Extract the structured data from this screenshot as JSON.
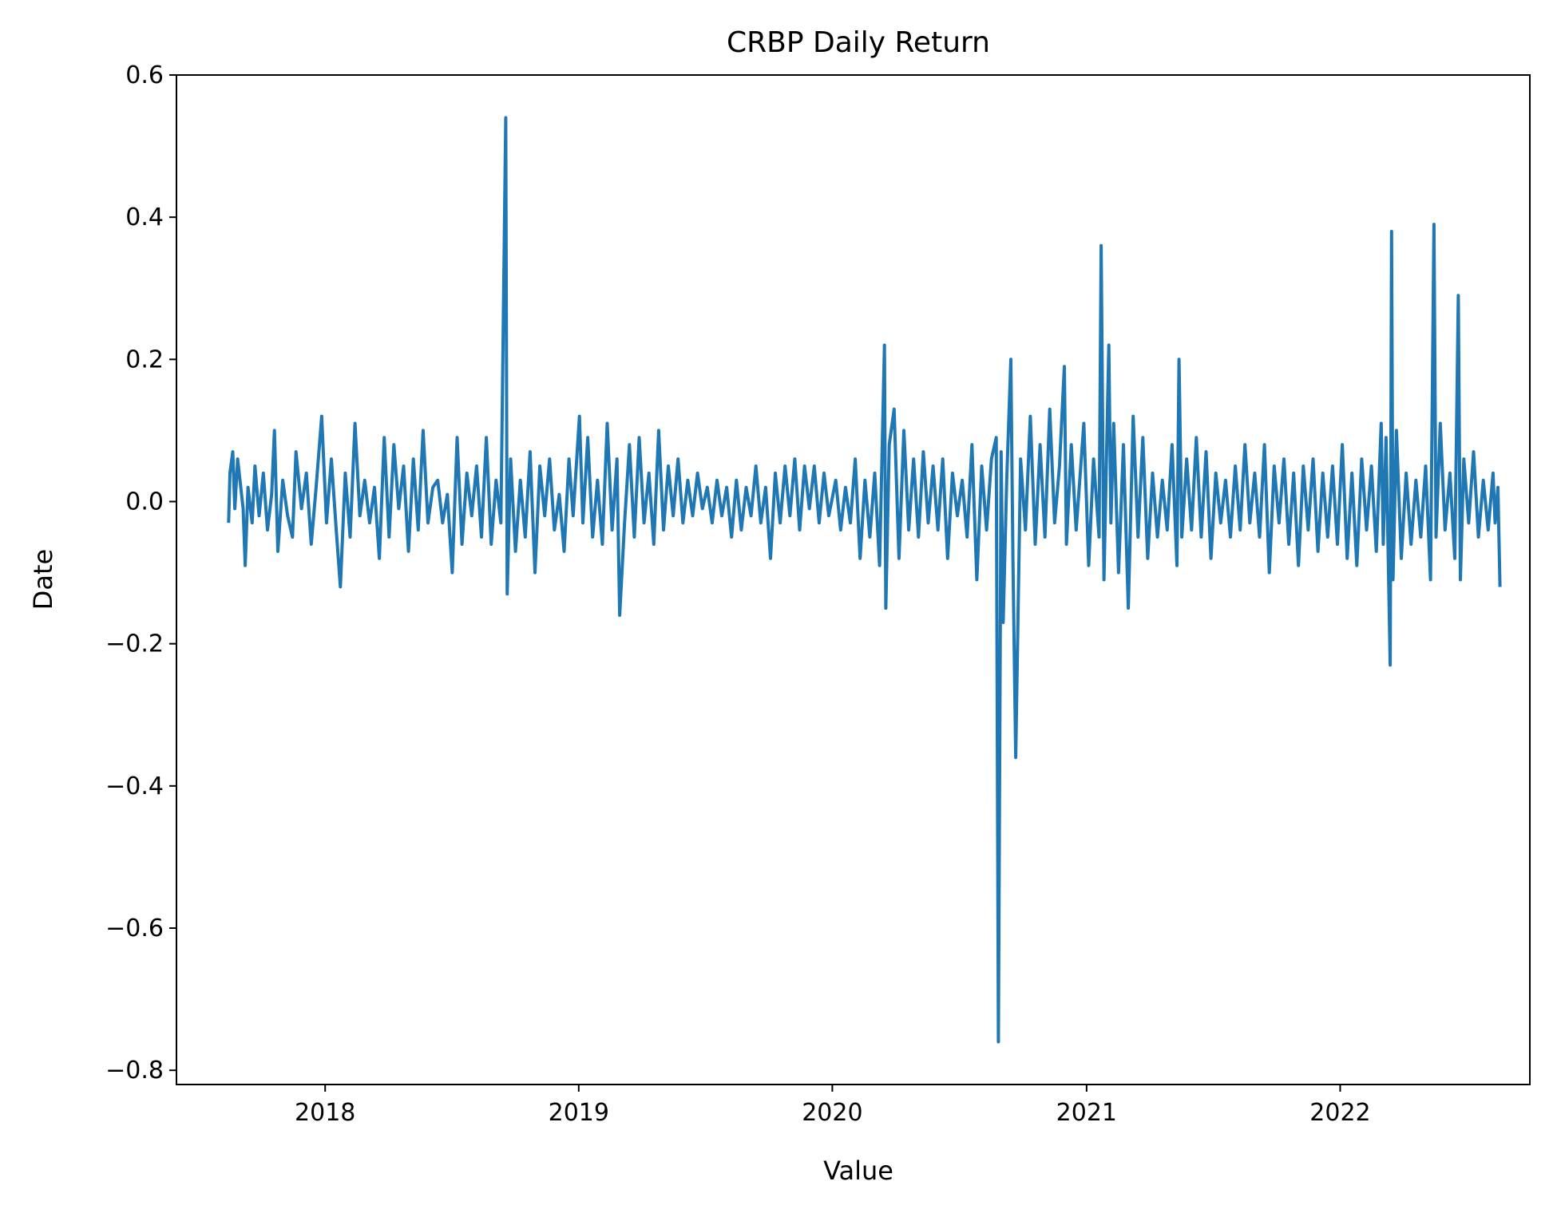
{
  "chart_data": {
    "type": "line",
    "title": "CRBP Daily Return",
    "xlabel": "Value",
    "ylabel": "Date",
    "x_ticks": [
      "2018",
      "2019",
      "2020",
      "2021",
      "2022"
    ],
    "y_ticks": [
      "0.6",
      "0.4",
      "0.2",
      "0.0",
      "−0.2",
      "−0.4",
      "−0.6",
      "−0.8"
    ],
    "xlim": [
      "2017-06-01",
      "2022-10-01"
    ],
    "ylim": [
      -0.82,
      0.6
    ],
    "grid": false,
    "line_color": "#1f77b4",
    "series": [
      {
        "values": [
          [
            "2017-08-15",
            -0.03
          ],
          [
            "2017-08-17",
            0.04
          ],
          [
            "2017-08-21",
            0.07
          ],
          [
            "2017-08-24",
            -0.01
          ],
          [
            "2017-08-28",
            0.06
          ],
          [
            "2017-09-05",
            -0.01
          ],
          [
            "2017-09-08",
            -0.09
          ],
          [
            "2017-09-12",
            0.02
          ],
          [
            "2017-09-18",
            -0.03
          ],
          [
            "2017-09-22",
            0.05
          ],
          [
            "2017-09-28",
            -0.02
          ],
          [
            "2017-10-04",
            0.04
          ],
          [
            "2017-10-10",
            -0.04
          ],
          [
            "2017-10-16",
            0.01
          ],
          [
            "2017-10-20",
            0.1
          ],
          [
            "2017-10-25",
            -0.07
          ],
          [
            "2017-11-01",
            0.03
          ],
          [
            "2017-11-08",
            -0.02
          ],
          [
            "2017-11-15",
            -0.05
          ],
          [
            "2017-11-20",
            0.07
          ],
          [
            "2017-11-28",
            -0.01
          ],
          [
            "2017-12-05",
            0.04
          ],
          [
            "2017-12-12",
            -0.06
          ],
          [
            "2017-12-19",
            0.02
          ],
          [
            "2017-12-27",
            0.12
          ],
          [
            "2018-01-03",
            -0.03
          ],
          [
            "2018-01-10",
            0.06
          ],
          [
            "2018-01-17",
            -0.04
          ],
          [
            "2018-01-23",
            -0.12
          ],
          [
            "2018-01-30",
            0.04
          ],
          [
            "2018-02-06",
            -0.05
          ],
          [
            "2018-02-13",
            0.11
          ],
          [
            "2018-02-20",
            -0.02
          ],
          [
            "2018-02-27",
            0.03
          ],
          [
            "2018-03-06",
            -0.03
          ],
          [
            "2018-03-13",
            0.02
          ],
          [
            "2018-03-20",
            -0.08
          ],
          [
            "2018-03-27",
            0.09
          ],
          [
            "2018-04-03",
            -0.05
          ],
          [
            "2018-04-10",
            0.08
          ],
          [
            "2018-04-17",
            -0.01
          ],
          [
            "2018-04-24",
            0.05
          ],
          [
            "2018-05-01",
            -0.07
          ],
          [
            "2018-05-08",
            0.06
          ],
          [
            "2018-05-15",
            -0.04
          ],
          [
            "2018-05-22",
            0.1
          ],
          [
            "2018-05-29",
            -0.03
          ],
          [
            "2018-06-05",
            0.02
          ],
          [
            "2018-06-12",
            0.03
          ],
          [
            "2018-06-19",
            -0.03
          ],
          [
            "2018-06-26",
            0.01
          ],
          [
            "2018-07-03",
            -0.1
          ],
          [
            "2018-07-10",
            0.09
          ],
          [
            "2018-07-17",
            -0.06
          ],
          [
            "2018-07-24",
            0.04
          ],
          [
            "2018-07-31",
            -0.02
          ],
          [
            "2018-08-07",
            0.05
          ],
          [
            "2018-08-14",
            -0.05
          ],
          [
            "2018-08-21",
            0.09
          ],
          [
            "2018-08-28",
            -0.06
          ],
          [
            "2018-09-04",
            0.03
          ],
          [
            "2018-09-11",
            -0.03
          ],
          [
            "2018-09-18",
            0.54
          ],
          [
            "2018-09-20",
            -0.13
          ],
          [
            "2018-09-25",
            0.06
          ],
          [
            "2018-10-02",
            -0.07
          ],
          [
            "2018-10-09",
            0.03
          ],
          [
            "2018-10-16",
            -0.05
          ],
          [
            "2018-10-23",
            0.07
          ],
          [
            "2018-10-30",
            -0.1
          ],
          [
            "2018-11-06",
            0.05
          ],
          [
            "2018-11-13",
            -0.02
          ],
          [
            "2018-11-20",
            0.06
          ],
          [
            "2018-11-27",
            -0.04
          ],
          [
            "2018-12-04",
            0.01
          ],
          [
            "2018-12-11",
            -0.07
          ],
          [
            "2018-12-18",
            0.06
          ],
          [
            "2018-12-24",
            -0.02
          ],
          [
            "2019-01-02",
            0.12
          ],
          [
            "2019-01-07",
            -0.03
          ],
          [
            "2019-01-14",
            0.09
          ],
          [
            "2019-01-21",
            -0.05
          ],
          [
            "2019-01-28",
            0.03
          ],
          [
            "2019-02-04",
            -0.06
          ],
          [
            "2019-02-11",
            0.11
          ],
          [
            "2019-02-18",
            -0.04
          ],
          [
            "2019-02-25",
            0.06
          ],
          [
            "2019-03-01",
            -0.16
          ],
          [
            "2019-03-08",
            -0.03
          ],
          [
            "2019-03-15",
            0.08
          ],
          [
            "2019-03-22",
            -0.05
          ],
          [
            "2019-03-29",
            0.09
          ],
          [
            "2019-04-05",
            -0.03
          ],
          [
            "2019-04-12",
            0.04
          ],
          [
            "2019-04-19",
            -0.06
          ],
          [
            "2019-04-26",
            0.1
          ],
          [
            "2019-05-03",
            -0.04
          ],
          [
            "2019-05-10",
            0.05
          ],
          [
            "2019-05-17",
            -0.02
          ],
          [
            "2019-05-24",
            0.06
          ],
          [
            "2019-05-31",
            -0.03
          ],
          [
            "2019-06-07",
            0.03
          ],
          [
            "2019-06-14",
            -0.02
          ],
          [
            "2019-06-21",
            0.04
          ],
          [
            "2019-06-28",
            -0.01
          ],
          [
            "2019-07-05",
            0.02
          ],
          [
            "2019-07-12",
            -0.03
          ],
          [
            "2019-07-19",
            0.03
          ],
          [
            "2019-07-26",
            -0.02
          ],
          [
            "2019-08-02",
            0.02
          ],
          [
            "2019-08-09",
            -0.05
          ],
          [
            "2019-08-16",
            0.03
          ],
          [
            "2019-08-23",
            -0.04
          ],
          [
            "2019-08-30",
            0.02
          ],
          [
            "2019-09-06",
            -0.02
          ],
          [
            "2019-09-13",
            0.05
          ],
          [
            "2019-09-20",
            -0.03
          ],
          [
            "2019-09-27",
            0.02
          ],
          [
            "2019-10-04",
            -0.08
          ],
          [
            "2019-10-11",
            0.04
          ],
          [
            "2019-10-18",
            -0.03
          ],
          [
            "2019-10-25",
            0.05
          ],
          [
            "2019-11-01",
            -0.02
          ],
          [
            "2019-11-08",
            0.06
          ],
          [
            "2019-11-15",
            -0.04
          ],
          [
            "2019-11-22",
            0.05
          ],
          [
            "2019-11-29",
            -0.01
          ],
          [
            "2019-12-06",
            0.05
          ],
          [
            "2019-12-13",
            -0.03
          ],
          [
            "2019-12-20",
            0.04
          ],
          [
            "2019-12-27",
            -0.02
          ],
          [
            "2020-01-06",
            0.03
          ],
          [
            "2020-01-13",
            -0.04
          ],
          [
            "2020-01-20",
            0.02
          ],
          [
            "2020-01-27",
            -0.03
          ],
          [
            "2020-02-03",
            0.06
          ],
          [
            "2020-02-10",
            -0.08
          ],
          [
            "2020-02-17",
            0.03
          ],
          [
            "2020-02-24",
            -0.05
          ],
          [
            "2020-03-02",
            0.04
          ],
          [
            "2020-03-09",
            -0.09
          ],
          [
            "2020-03-16",
            0.22
          ],
          [
            "2020-03-18",
            -0.15
          ],
          [
            "2020-03-23",
            0.08
          ],
          [
            "2020-03-30",
            0.13
          ],
          [
            "2020-04-06",
            -0.08
          ],
          [
            "2020-04-13",
            0.1
          ],
          [
            "2020-04-20",
            -0.04
          ],
          [
            "2020-04-27",
            0.06
          ],
          [
            "2020-05-04",
            -0.05
          ],
          [
            "2020-05-11",
            0.07
          ],
          [
            "2020-05-18",
            -0.03
          ],
          [
            "2020-05-25",
            0.05
          ],
          [
            "2020-06-01",
            -0.04
          ],
          [
            "2020-06-08",
            0.06
          ],
          [
            "2020-06-15",
            -0.08
          ],
          [
            "2020-06-22",
            0.04
          ],
          [
            "2020-06-29",
            -0.02
          ],
          [
            "2020-07-06",
            0.03
          ],
          [
            "2020-07-13",
            -0.05
          ],
          [
            "2020-07-20",
            0.08
          ],
          [
            "2020-07-27",
            -0.11
          ],
          [
            "2020-08-03",
            0.05
          ],
          [
            "2020-08-10",
            -0.04
          ],
          [
            "2020-08-17",
            0.06
          ],
          [
            "2020-08-24",
            0.09
          ],
          [
            "2020-08-27",
            -0.76
          ],
          [
            "2020-08-31",
            0.07
          ],
          [
            "2020-09-03",
            -0.17
          ],
          [
            "2020-09-08",
            0.03
          ],
          [
            "2020-09-14",
            0.2
          ],
          [
            "2020-09-17",
            -0.08
          ],
          [
            "2020-09-21",
            -0.36
          ],
          [
            "2020-09-28",
            0.06
          ],
          [
            "2020-10-05",
            -0.04
          ],
          [
            "2020-10-12",
            0.12
          ],
          [
            "2020-10-19",
            -0.06
          ],
          [
            "2020-10-26",
            0.08
          ],
          [
            "2020-11-02",
            -0.05
          ],
          [
            "2020-11-09",
            0.13
          ],
          [
            "2020-11-16",
            -0.03
          ],
          [
            "2020-11-23",
            0.05
          ],
          [
            "2020-11-30",
            0.19
          ],
          [
            "2020-12-03",
            -0.06
          ],
          [
            "2020-12-10",
            0.08
          ],
          [
            "2020-12-17",
            -0.04
          ],
          [
            "2020-12-28",
            0.11
          ],
          [
            "2021-01-04",
            -0.09
          ],
          [
            "2021-01-11",
            0.06
          ],
          [
            "2021-01-19",
            -0.05
          ],
          [
            "2021-01-22",
            0.36
          ],
          [
            "2021-01-26",
            -0.11
          ],
          [
            "2021-02-02",
            0.22
          ],
          [
            "2021-02-05",
            -0.03
          ],
          [
            "2021-02-09",
            0.11
          ],
          [
            "2021-02-16",
            -0.1
          ],
          [
            "2021-02-23",
            0.08
          ],
          [
            "2021-03-02",
            -0.15
          ],
          [
            "2021-03-09",
            0.12
          ],
          [
            "2021-03-16",
            -0.05
          ],
          [
            "2021-03-23",
            0.09
          ],
          [
            "2021-03-30",
            -0.08
          ],
          [
            "2021-04-06",
            0.04
          ],
          [
            "2021-04-13",
            -0.05
          ],
          [
            "2021-04-20",
            0.03
          ],
          [
            "2021-04-27",
            -0.04
          ],
          [
            "2021-05-04",
            0.08
          ],
          [
            "2021-05-11",
            -0.09
          ],
          [
            "2021-05-14",
            0.2
          ],
          [
            "2021-05-18",
            -0.05
          ],
          [
            "2021-05-25",
            0.06
          ],
          [
            "2021-06-01",
            -0.04
          ],
          [
            "2021-06-08",
            0.09
          ],
          [
            "2021-06-15",
            -0.05
          ],
          [
            "2021-06-22",
            0.07
          ],
          [
            "2021-06-29",
            -0.08
          ],
          [
            "2021-07-06",
            0.04
          ],
          [
            "2021-07-13",
            -0.03
          ],
          [
            "2021-07-20",
            0.03
          ],
          [
            "2021-07-27",
            -0.05
          ],
          [
            "2021-08-03",
            0.05
          ],
          [
            "2021-08-10",
            -0.04
          ],
          [
            "2021-08-17",
            0.08
          ],
          [
            "2021-08-24",
            -0.03
          ],
          [
            "2021-08-31",
            0.04
          ],
          [
            "2021-09-07",
            -0.05
          ],
          [
            "2021-09-14",
            0.08
          ],
          [
            "2021-09-21",
            -0.1
          ],
          [
            "2021-09-28",
            0.05
          ],
          [
            "2021-10-05",
            -0.03
          ],
          [
            "2021-10-12",
            0.06
          ],
          [
            "2021-10-19",
            -0.06
          ],
          [
            "2021-10-26",
            0.04
          ],
          [
            "2021-11-02",
            -0.09
          ],
          [
            "2021-11-09",
            0.05
          ],
          [
            "2021-11-16",
            -0.04
          ],
          [
            "2021-11-23",
            0.06
          ],
          [
            "2021-11-30",
            -0.07
          ],
          [
            "2021-12-07",
            0.04
          ],
          [
            "2021-12-14",
            -0.05
          ],
          [
            "2021-12-21",
            0.05
          ],
          [
            "2021-12-28",
            -0.06
          ],
          [
            "2022-01-04",
            0.08
          ],
          [
            "2022-01-11",
            -0.08
          ],
          [
            "2022-01-18",
            0.04
          ],
          [
            "2022-01-25",
            -0.09
          ],
          [
            "2022-02-01",
            0.06
          ],
          [
            "2022-02-08",
            -0.04
          ],
          [
            "2022-02-15",
            0.05
          ],
          [
            "2022-02-22",
            -0.07
          ],
          [
            "2022-03-01",
            0.11
          ],
          [
            "2022-03-04",
            -0.06
          ],
          [
            "2022-03-08",
            0.09
          ],
          [
            "2022-03-14",
            -0.23
          ],
          [
            "2022-03-16",
            0.38
          ],
          [
            "2022-03-18",
            -0.11
          ],
          [
            "2022-03-23",
            0.1
          ],
          [
            "2022-03-30",
            -0.08
          ],
          [
            "2022-04-06",
            0.04
          ],
          [
            "2022-04-13",
            -0.06
          ],
          [
            "2022-04-20",
            0.03
          ],
          [
            "2022-04-27",
            -0.05
          ],
          [
            "2022-05-04",
            0.05
          ],
          [
            "2022-05-11",
            -0.11
          ],
          [
            "2022-05-16",
            0.39
          ],
          [
            "2022-05-19",
            -0.05
          ],
          [
            "2022-05-25",
            0.11
          ],
          [
            "2022-06-01",
            -0.04
          ],
          [
            "2022-06-08",
            0.04
          ],
          [
            "2022-06-15",
            -0.08
          ],
          [
            "2022-06-20",
            0.29
          ],
          [
            "2022-06-23",
            -0.11
          ],
          [
            "2022-06-28",
            0.06
          ],
          [
            "2022-07-05",
            -0.03
          ],
          [
            "2022-07-12",
            0.07
          ],
          [
            "2022-07-19",
            -0.05
          ],
          [
            "2022-07-26",
            0.03
          ],
          [
            "2022-08-02",
            -0.04
          ],
          [
            "2022-08-09",
            0.04
          ],
          [
            "2022-08-12",
            -0.03
          ],
          [
            "2022-08-16",
            0.02
          ],
          [
            "2022-08-19",
            -0.12
          ]
        ]
      }
    ]
  }
}
